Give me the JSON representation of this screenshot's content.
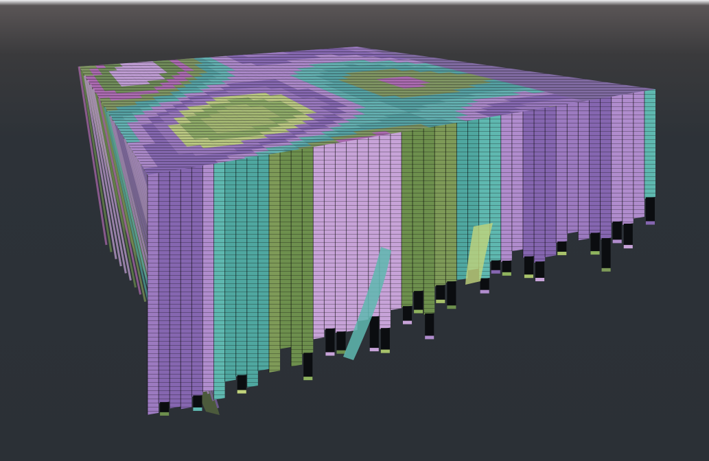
{
  "scene": {
    "background": {
      "top_color": "#f2f2f4",
      "mid_color": "#4a4748",
      "bottom_color": "#2b3036"
    },
    "object": "voxel-terrain-block",
    "palette": [
      "#a8c26b",
      "#8fb35e",
      "#c2d47c",
      "#9c7ac0",
      "#8566b0",
      "#b08ccd",
      "#5fb8b0",
      "#4fa7a0",
      "#7e9a58",
      "#b06ab0",
      "#6d8f4d",
      "#c7a3d8"
    ],
    "column_shadow": "#0b0d10"
  }
}
